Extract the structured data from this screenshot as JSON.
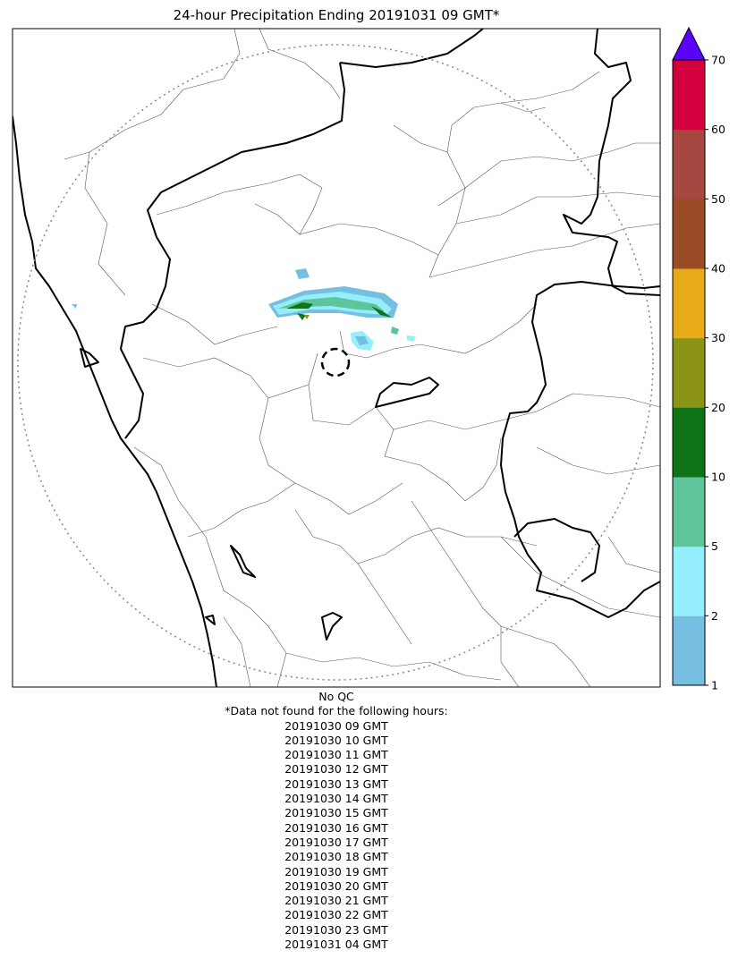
{
  "title": "24-hour Precipitation Ending 20191031 09 GMT*",
  "qc_note": "No QC",
  "missing_header": "*Data not found for the following hours:",
  "missing_hours": [
    "20191030 09 GMT",
    "20191030 10 GMT",
    "20191030 11 GMT",
    "20191030 12 GMT",
    "20191030 13 GMT",
    "20191030 14 GMT",
    "20191030 15 GMT",
    "20191030 16 GMT",
    "20191030 17 GMT",
    "20191030 18 GMT",
    "20191030 19 GMT",
    "20191030 20 GMT",
    "20191030 21 GMT",
    "20191030 22 GMT",
    "20191030 23 GMT",
    "20191031 04 GMT"
  ],
  "colorbar": {
    "ticks": [
      "1",
      "2",
      "5",
      "10",
      "20",
      "30",
      "40",
      "50",
      "60",
      "70"
    ],
    "bins": [
      {
        "from": "1",
        "to": "2",
        "color": "#76bfe3"
      },
      {
        "from": "2",
        "to": "5",
        "color": "#95eefb"
      },
      {
        "from": "5",
        "to": "10",
        "color": "#5ec49a"
      },
      {
        "from": "10",
        "to": "20",
        "color": "#0e7417"
      },
      {
        "from": "20",
        "to": "30",
        "color": "#8b9416"
      },
      {
        "from": "30",
        "to": "40",
        "color": "#e7ab19"
      },
      {
        "from": "40",
        "to": "50",
        "color": "#9b4c26"
      },
      {
        "from": "50",
        "to": "60",
        "color": "#a64841"
      },
      {
        "from": "60",
        "to": "70",
        "color": "#d5003e"
      }
    ],
    "extend_max_color": "#5a02fc"
  },
  "colors": {
    "state_border": "#000000",
    "district_border": "#555555",
    "radar_range_ring": "#888888",
    "radar_site_marker": "#000000"
  }
}
